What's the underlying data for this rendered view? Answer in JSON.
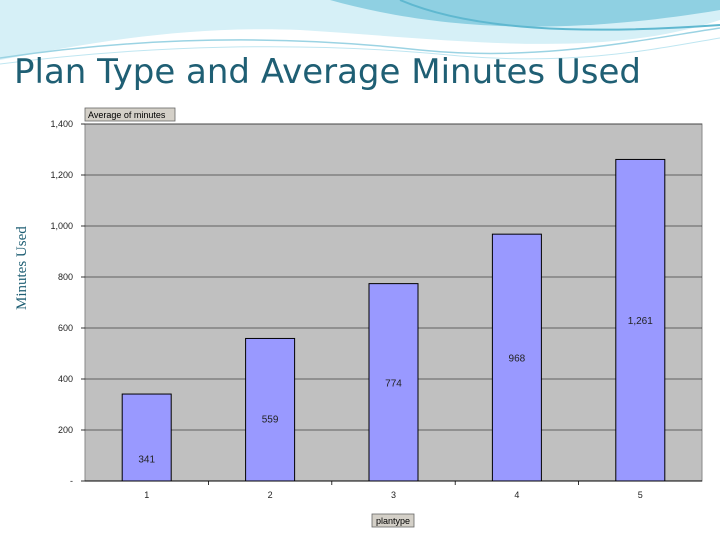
{
  "slide": {
    "title": "Plan Type and Average Minutes Used",
    "side_label": "Minutes Used"
  },
  "colors": {
    "title": "#1f5f74",
    "plot_bg": "#c0c0c0",
    "bar_fill": "#9999ff",
    "bar_stroke": "#000000",
    "wave_light": "#bfe6f1",
    "wave_dark": "#5fb8d0"
  },
  "chart_data": {
    "type": "bar",
    "title": "Average of minutes",
    "xlabel": "plantype",
    "ylabel": "",
    "categories": [
      "1",
      "2",
      "3",
      "4",
      "5"
    ],
    "values": [
      341,
      559,
      774,
      968,
      1261
    ],
    "value_labels": [
      "341",
      "559",
      "774",
      "968",
      "1,261"
    ],
    "ylim": [
      0,
      1400
    ],
    "yticks": [
      0,
      200,
      400,
      600,
      800,
      1000,
      1200,
      1400
    ],
    "ytick_labels": [
      "-",
      "200",
      "400",
      "600",
      "800",
      "1,000",
      "1,200",
      "1,400"
    ],
    "grid": true,
    "legend": "none"
  }
}
